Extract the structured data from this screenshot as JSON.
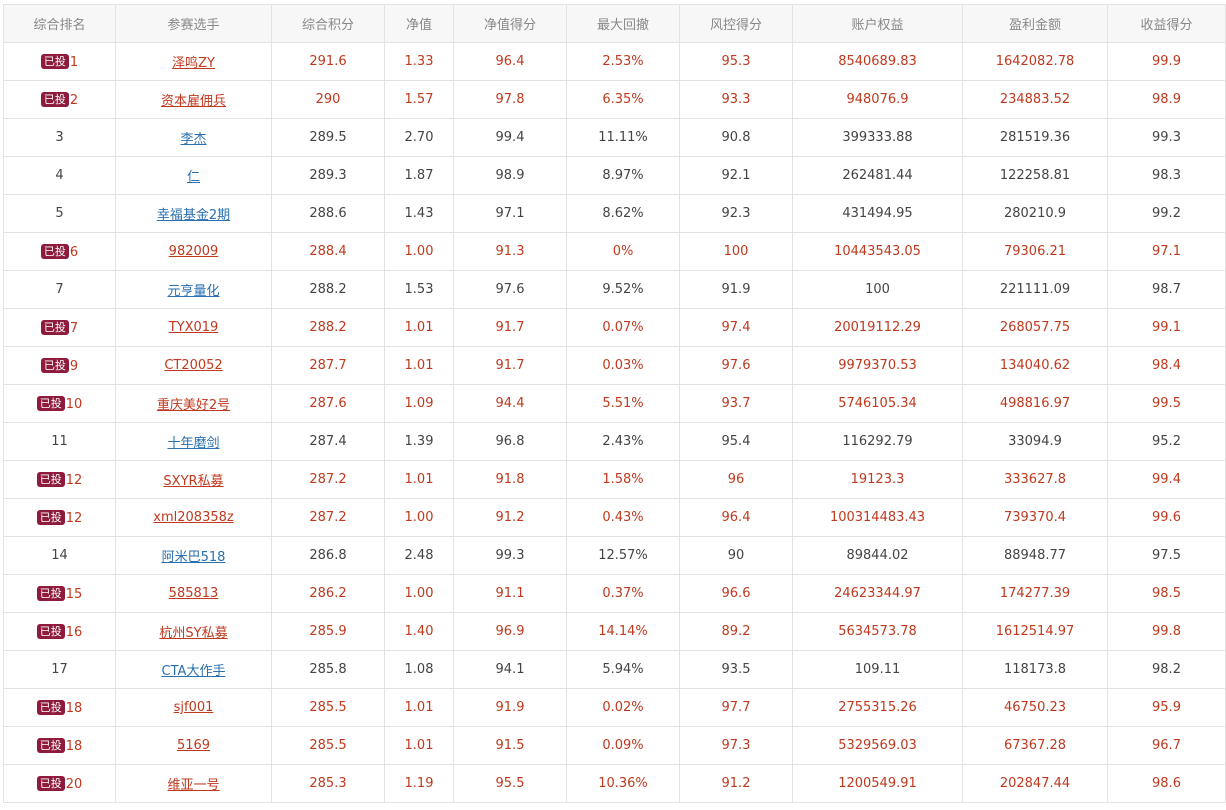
{
  "table": {
    "headers": [
      "综合排名",
      "参赛选手",
      "综合积分",
      "净值",
      "净值得分",
      "最大回撤",
      "风控得分",
      "账户权益",
      "盈利金额",
      "收益得分"
    ],
    "badge_label": "已投",
    "rows": [
      {
        "invested": true,
        "rank": "1",
        "name": "泽鸣ZY",
        "score": "291.6",
        "nav": "1.33",
        "nav_score": "96.4",
        "drawdown": "2.53%",
        "risk_score": "95.3",
        "equity": "8540689.83",
        "profit": "1642082.78",
        "return_score": "99.9"
      },
      {
        "invested": true,
        "rank": "2",
        "name": "资本雇佣兵",
        "score": "290",
        "nav": "1.57",
        "nav_score": "97.8",
        "drawdown": "6.35%",
        "risk_score": "93.3",
        "equity": "948076.9",
        "profit": "234883.52",
        "return_score": "98.9"
      },
      {
        "invested": false,
        "rank": "3",
        "name": "李杰",
        "score": "289.5",
        "nav": "2.70",
        "nav_score": "99.4",
        "drawdown": "11.11%",
        "risk_score": "90.8",
        "equity": "399333.88",
        "profit": "281519.36",
        "return_score": "99.3"
      },
      {
        "invested": false,
        "rank": "4",
        "name": "仁",
        "score": "289.3",
        "nav": "1.87",
        "nav_score": "98.9",
        "drawdown": "8.97%",
        "risk_score": "92.1",
        "equity": "262481.44",
        "profit": "122258.81",
        "return_score": "98.3"
      },
      {
        "invested": false,
        "rank": "5",
        "name": "幸福基金2期",
        "score": "288.6",
        "nav": "1.43",
        "nav_score": "97.1",
        "drawdown": "8.62%",
        "risk_score": "92.3",
        "equity": "431494.95",
        "profit": "280210.9",
        "return_score": "99.2"
      },
      {
        "invested": true,
        "rank": "6",
        "name": "982009",
        "score": "288.4",
        "nav": "1.00",
        "nav_score": "91.3",
        "drawdown": "0%",
        "risk_score": "100",
        "equity": "10443543.05",
        "profit": "79306.21",
        "return_score": "97.1"
      },
      {
        "invested": false,
        "rank": "7",
        "name": "元亨量化",
        "score": "288.2",
        "nav": "1.53",
        "nav_score": "97.6",
        "drawdown": "9.52%",
        "risk_score": "91.9",
        "equity": "100",
        "profit": "221111.09",
        "return_score": "98.7"
      },
      {
        "invested": true,
        "rank": "7",
        "name": "TYX019",
        "score": "288.2",
        "nav": "1.01",
        "nav_score": "91.7",
        "drawdown": "0.07%",
        "risk_score": "97.4",
        "equity": "20019112.29",
        "profit": "268057.75",
        "return_score": "99.1"
      },
      {
        "invested": true,
        "rank": "9",
        "name": "CT20052",
        "score": "287.7",
        "nav": "1.01",
        "nav_score": "91.7",
        "drawdown": "0.03%",
        "risk_score": "97.6",
        "equity": "9979370.53",
        "profit": "134040.62",
        "return_score": "98.4"
      },
      {
        "invested": true,
        "rank": "10",
        "name": "重庆美好2号",
        "score": "287.6",
        "nav": "1.09",
        "nav_score": "94.4",
        "drawdown": "5.51%",
        "risk_score": "93.7",
        "equity": "5746105.34",
        "profit": "498816.97",
        "return_score": "99.5"
      },
      {
        "invested": false,
        "rank": "11",
        "name": "十年磨剑",
        "score": "287.4",
        "nav": "1.39",
        "nav_score": "96.8",
        "drawdown": "2.43%",
        "risk_score": "95.4",
        "equity": "116292.79",
        "profit": "33094.9",
        "return_score": "95.2"
      },
      {
        "invested": true,
        "rank": "12",
        "name": "SXYR私募",
        "score": "287.2",
        "nav": "1.01",
        "nav_score": "91.8",
        "drawdown": "1.58%",
        "risk_score": "96",
        "equity": "19123.3",
        "profit": "333627.8",
        "return_score": "99.4"
      },
      {
        "invested": true,
        "rank": "12",
        "name": "xml208358z",
        "score": "287.2",
        "nav": "1.00",
        "nav_score": "91.2",
        "drawdown": "0.43%",
        "risk_score": "96.4",
        "equity": "100314483.43",
        "profit": "739370.4",
        "return_score": "99.6"
      },
      {
        "invested": false,
        "rank": "14",
        "name": "阿米巴518",
        "score": "286.8",
        "nav": "2.48",
        "nav_score": "99.3",
        "drawdown": "12.57%",
        "risk_score": "90",
        "equity": "89844.02",
        "profit": "88948.77",
        "return_score": "97.5"
      },
      {
        "invested": true,
        "rank": "15",
        "name": "585813",
        "score": "286.2",
        "nav": "1.00",
        "nav_score": "91.1",
        "drawdown": "0.37%",
        "risk_score": "96.6",
        "equity": "24623344.97",
        "profit": "174277.39",
        "return_score": "98.5"
      },
      {
        "invested": true,
        "rank": "16",
        "name": "杭州SY私募",
        "score": "285.9",
        "nav": "1.40",
        "nav_score": "96.9",
        "drawdown": "14.14%",
        "risk_score": "89.2",
        "equity": "5634573.78",
        "profit": "1612514.97",
        "return_score": "99.8"
      },
      {
        "invested": false,
        "rank": "17",
        "name": "CTA大作手",
        "score": "285.8",
        "nav": "1.08",
        "nav_score": "94.1",
        "drawdown": "5.94%",
        "risk_score": "93.5",
        "equity": "109.11",
        "profit": "118173.8",
        "return_score": "98.2"
      },
      {
        "invested": true,
        "rank": "18",
        "name": "sjf001",
        "score": "285.5",
        "nav": "1.01",
        "nav_score": "91.9",
        "drawdown": "0.02%",
        "risk_score": "97.7",
        "equity": "2755315.26",
        "profit": "46750.23",
        "return_score": "95.9"
      },
      {
        "invested": true,
        "rank": "18",
        "name": "5169",
        "score": "285.5",
        "nav": "1.01",
        "nav_score": "91.5",
        "drawdown": "0.09%",
        "risk_score": "97.3",
        "equity": "5329569.03",
        "profit": "67367.28",
        "return_score": "96.7"
      },
      {
        "invested": true,
        "rank": "20",
        "name": "维亚一号",
        "score": "285.3",
        "nav": "1.19",
        "nav_score": "95.5",
        "drawdown": "10.36%",
        "risk_score": "91.2",
        "equity": "1200549.91",
        "profit": "202847.44",
        "return_score": "98.6"
      }
    ]
  },
  "colors": {
    "invested_text": "#c0391e",
    "normal_text": "#444444",
    "link_normal": "#2a6fb0",
    "badge_bg": "#8e1b3c",
    "header_text": "#888888",
    "header_bg": "#f7f7f7",
    "border": "#e3e3e3"
  }
}
